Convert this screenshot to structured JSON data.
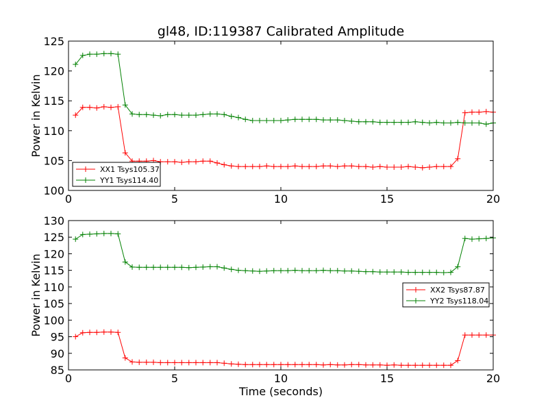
{
  "chart_data": [
    {
      "type": "line",
      "title": "gl48, ID:119387 Calibrated Amplitude",
      "xlabel": "",
      "ylabel": "Power in Kelvin",
      "xlim": [
        0,
        20
      ],
      "ylim": [
        100,
        125
      ],
      "xticks": [
        0,
        5,
        10,
        15,
        20
      ],
      "yticks": [
        100,
        105,
        110,
        115,
        120,
        125
      ],
      "legend_position": "lower-left",
      "x": [
        0.33,
        0.67,
        1.0,
        1.33,
        1.67,
        2.0,
        2.33,
        2.67,
        3.0,
        3.33,
        3.67,
        4.0,
        4.33,
        4.67,
        5.0,
        5.33,
        5.67,
        6.0,
        6.33,
        6.67,
        7.0,
        7.33,
        7.67,
        8.0,
        8.33,
        8.67,
        9.0,
        9.33,
        9.67,
        10.0,
        10.33,
        10.67,
        11.0,
        11.33,
        11.67,
        12.0,
        12.33,
        12.67,
        13.0,
        13.33,
        13.67,
        14.0,
        14.33,
        14.67,
        15.0,
        15.33,
        15.67,
        16.0,
        16.33,
        16.67,
        17.0,
        17.33,
        17.67,
        18.0,
        18.33,
        18.67,
        19.0,
        19.33,
        19.67,
        20.0
      ],
      "series": [
        {
          "name": "XX1 Tsys105.37",
          "color": "#ff0000",
          "values": [
            112.6,
            113.9,
            113.9,
            113.8,
            114.0,
            113.9,
            114.0,
            106.3,
            104.9,
            104.9,
            104.9,
            105.0,
            104.8,
            104.8,
            104.8,
            104.7,
            104.8,
            104.8,
            104.9,
            104.9,
            104.6,
            104.3,
            104.1,
            104.0,
            104.0,
            104.0,
            104.0,
            104.1,
            104.0,
            104.0,
            104.0,
            104.1,
            104.0,
            104.0,
            104.0,
            104.1,
            104.1,
            104.0,
            104.1,
            104.1,
            104.0,
            104.0,
            103.9,
            104.0,
            103.9,
            103.9,
            103.9,
            104.0,
            103.9,
            103.8,
            103.9,
            104.0,
            104.0,
            104.0,
            105.3,
            113.0,
            113.1,
            113.1,
            113.2,
            113.1
          ],
          "note_values_start": 0
        },
        {
          "name": "YY1 Tsys114.40",
          "color": "#008000",
          "values": [
            121.1,
            122.6,
            122.8,
            122.8,
            122.9,
            122.9,
            122.8,
            114.3,
            112.8,
            112.7,
            112.7,
            112.6,
            112.5,
            112.7,
            112.7,
            112.6,
            112.6,
            112.6,
            112.7,
            112.8,
            112.8,
            112.7,
            112.4,
            112.2,
            111.9,
            111.7,
            111.7,
            111.7,
            111.7,
            111.7,
            111.8,
            111.9,
            111.9,
            111.9,
            111.9,
            111.8,
            111.8,
            111.8,
            111.7,
            111.6,
            111.5,
            111.5,
            111.5,
            111.4,
            111.4,
            111.4,
            111.4,
            111.4,
            111.5,
            111.4,
            111.3,
            111.4,
            111.3,
            111.3,
            111.4,
            111.3,
            111.3,
            111.3,
            111.1,
            111.3
          ],
          "note_values_start": 0
        }
      ]
    },
    {
      "type": "line",
      "title": "",
      "xlabel": "Time (seconds)",
      "ylabel": "Power in Kelvin",
      "xlim": [
        0,
        20
      ],
      "ylim": [
        85,
        130
      ],
      "xticks": [
        0,
        5,
        10,
        15,
        20
      ],
      "yticks": [
        85,
        90,
        95,
        100,
        105,
        110,
        115,
        120,
        125,
        130
      ],
      "legend_position": "center-right",
      "series": [
        {
          "name": "XX2 Tsys87.87",
          "color": "#ff0000",
          "values": [
            95.0,
            96.2,
            96.3,
            96.3,
            96.4,
            96.4,
            96.3,
            88.6,
            87.4,
            87.3,
            87.3,
            87.3,
            87.2,
            87.2,
            87.2,
            87.2,
            87.2,
            87.2,
            87.2,
            87.2,
            87.2,
            87.0,
            86.8,
            86.7,
            86.6,
            86.6,
            86.6,
            86.6,
            86.6,
            86.6,
            86.6,
            86.6,
            86.6,
            86.6,
            86.6,
            86.5,
            86.6,
            86.5,
            86.5,
            86.6,
            86.6,
            86.5,
            86.5,
            86.5,
            86.4,
            86.5,
            86.4,
            86.4,
            86.4,
            86.4,
            86.4,
            86.4,
            86.4,
            86.4,
            87.8,
            95.5,
            95.5,
            95.5,
            95.5,
            95.5
          ]
        },
        {
          "name": "YY2 Tsys118.04",
          "color": "#008000",
          "values": [
            124.4,
            125.8,
            125.9,
            126.0,
            126.1,
            126.1,
            126.0,
            117.5,
            116.0,
            115.9,
            115.9,
            115.9,
            115.9,
            115.9,
            115.9,
            115.9,
            115.8,
            115.9,
            116.0,
            116.1,
            116.1,
            115.7,
            115.3,
            115.0,
            114.9,
            114.8,
            114.7,
            114.8,
            114.9,
            114.9,
            114.9,
            115.0,
            114.9,
            114.9,
            114.9,
            115.0,
            114.9,
            114.9,
            114.8,
            114.8,
            114.7,
            114.6,
            114.6,
            114.5,
            114.5,
            114.5,
            114.5,
            114.4,
            114.4,
            114.4,
            114.4,
            114.4,
            114.3,
            114.4,
            116.1,
            124.6,
            124.4,
            124.5,
            124.6,
            124.8
          ]
        }
      ]
    }
  ]
}
